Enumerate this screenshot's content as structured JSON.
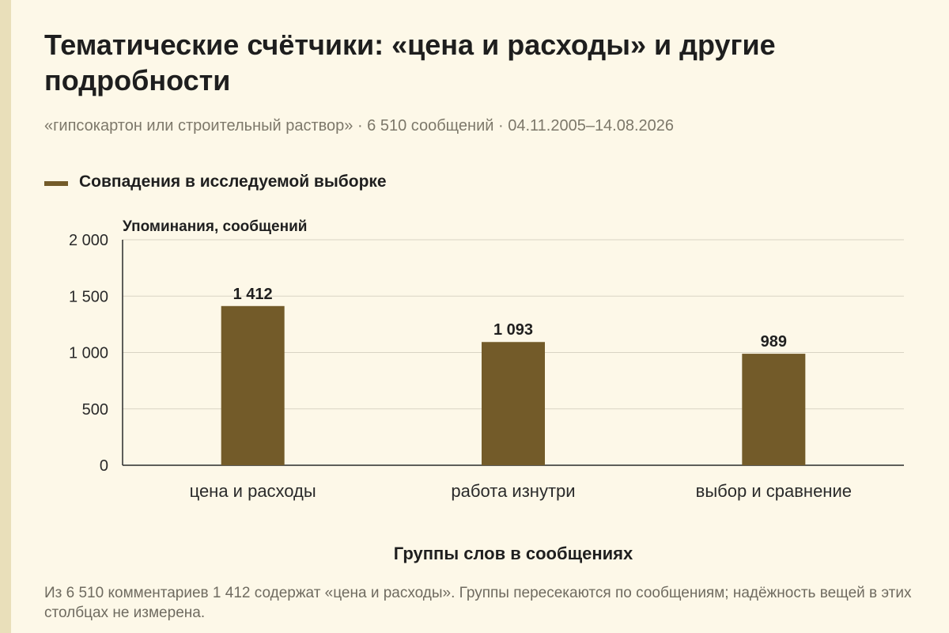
{
  "title": "Тематические счётчики: «цена и расходы» и другие подробности",
  "subtitle": "«гипсокартон или строительный раствор» · 6 510 сообщений · 04.11.2005–14.08.2026",
  "footnote": "Из 6 510 комментариев 1 412 содержат «цена и расходы». Группы пересекаются по сообщениям; надёжность вещей в этих столбцах не измерена.",
  "colors": {
    "bar": "#735b29",
    "background": "#fdf8e8",
    "grid": "#d9d4c4"
  },
  "chart_data": {
    "type": "bar",
    "categories": [
      "цена и расходы",
      "работа изнутри",
      "выбор и сравнение"
    ],
    "series": [
      {
        "name": "Совпадения в исследуемой выборке",
        "values": [
          1412,
          1093,
          989
        ],
        "value_labels": [
          "1 412",
          "1 093",
          "989"
        ]
      }
    ],
    "ylabel": "Упоминания, сообщений",
    "xlabel": "Группы слов в сообщениях",
    "ylim": [
      0,
      2000
    ],
    "yticks": [
      0,
      500,
      1000,
      1500,
      2000
    ],
    "ytick_labels": [
      "0",
      "500",
      "1 000",
      "1 500",
      "2 000"
    ],
    "grid": true,
    "legend": "top-left"
  }
}
